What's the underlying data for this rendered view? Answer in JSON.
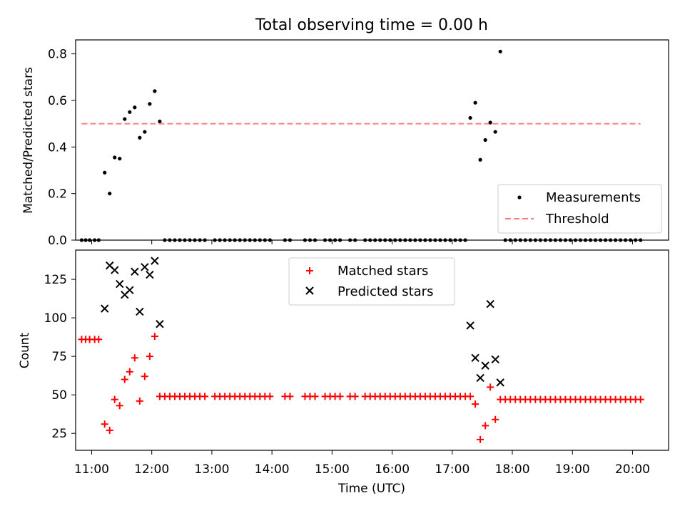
{
  "chart_data": [
    {
      "type": "scatter",
      "title": "Total observing time = 0.00 h",
      "xlabel": "",
      "ylabel": "Matched/Predicted stars",
      "xlim": [
        "10:44",
        "20:36"
      ],
      "ylim": [
        0,
        0.86
      ],
      "yticks": [
        "0.0",
        "0.2",
        "0.4",
        "0.6",
        "0.8"
      ],
      "grid": false,
      "legend_position": "lower-right",
      "series": [
        {
          "name": "Measurements",
          "marker": "dot",
          "color": "#000000",
          "points": [
            [
              "10:50",
              0
            ],
            [
              "10:54",
              0
            ],
            [
              "10:58",
              0
            ],
            [
              "11:03",
              0
            ],
            [
              "11:07",
              0
            ],
            [
              "11:13",
              0.29
            ],
            [
              "11:18",
              0.2
            ],
            [
              "11:23",
              0.355
            ],
            [
              "11:28",
              0.35
            ],
            [
              "11:33",
              0.52
            ],
            [
              "11:38",
              0.55
            ],
            [
              "11:43",
              0.57
            ],
            [
              "11:48",
              0.44
            ],
            [
              "11:53",
              0.465
            ],
            [
              "11:58",
              0.585
            ],
            [
              "12:03",
              0.64
            ],
            [
              "12:08",
              0.51
            ],
            [
              "12:13",
              0
            ],
            [
              "12:18",
              0
            ],
            [
              "12:23",
              0
            ],
            [
              "12:28",
              0
            ],
            [
              "12:33",
              0
            ],
            [
              "12:38",
              0
            ],
            [
              "12:43",
              0
            ],
            [
              "12:48",
              0
            ],
            [
              "12:53",
              0
            ],
            [
              "13:03",
              0
            ],
            [
              "13:08",
              0
            ],
            [
              "13:13",
              0
            ],
            [
              "13:18",
              0
            ],
            [
              "13:23",
              0
            ],
            [
              "13:28",
              0
            ],
            [
              "13:33",
              0
            ],
            [
              "13:38",
              0
            ],
            [
              "13:43",
              0
            ],
            [
              "13:48",
              0
            ],
            [
              "13:53",
              0
            ],
            [
              "13:58",
              0
            ],
            [
              "14:13",
              0
            ],
            [
              "14:18",
              0
            ],
            [
              "14:33",
              0
            ],
            [
              "14:38",
              0
            ],
            [
              "14:43",
              0
            ],
            [
              "14:53",
              0
            ],
            [
              "14:58",
              0
            ],
            [
              "15:03",
              0
            ],
            [
              "15:08",
              0
            ],
            [
              "15:18",
              0
            ],
            [
              "15:23",
              0
            ],
            [
              "15:33",
              0
            ],
            [
              "15:38",
              0
            ],
            [
              "15:43",
              0
            ],
            [
              "15:48",
              0
            ],
            [
              "15:53",
              0
            ],
            [
              "15:58",
              0
            ],
            [
              "16:03",
              0
            ],
            [
              "16:08",
              0
            ],
            [
              "16:13",
              0
            ],
            [
              "16:18",
              0
            ],
            [
              "16:23",
              0
            ],
            [
              "16:28",
              0
            ],
            [
              "16:33",
              0
            ],
            [
              "16:38",
              0
            ],
            [
              "16:43",
              0
            ],
            [
              "16:48",
              0
            ],
            [
              "16:53",
              0
            ],
            [
              "16:58",
              0
            ],
            [
              "17:03",
              0
            ],
            [
              "17:08",
              0
            ],
            [
              "17:13",
              0
            ],
            [
              "17:18",
              0.525
            ],
            [
              "17:23",
              0.59
            ],
            [
              "17:28",
              0.345
            ],
            [
              "17:33",
              0.43
            ],
            [
              "17:38",
              0.505
            ],
            [
              "17:43",
              0.465
            ],
            [
              "17:48",
              0.81
            ],
            [
              "17:53",
              0
            ],
            [
              "17:58",
              0
            ],
            [
              "18:03",
              0
            ],
            [
              "18:08",
              0
            ],
            [
              "18:13",
              0
            ],
            [
              "18:18",
              0
            ],
            [
              "18:23",
              0
            ],
            [
              "18:28",
              0
            ],
            [
              "18:33",
              0
            ],
            [
              "18:38",
              0
            ],
            [
              "18:43",
              0
            ],
            [
              "18:48",
              0
            ],
            [
              "18:53",
              0
            ],
            [
              "18:58",
              0
            ],
            [
              "19:03",
              0
            ],
            [
              "19:08",
              0
            ],
            [
              "19:13",
              0
            ],
            [
              "19:18",
              0
            ],
            [
              "19:23",
              0
            ],
            [
              "19:28",
              0
            ],
            [
              "19:33",
              0
            ],
            [
              "19:38",
              0
            ],
            [
              "19:43",
              0
            ],
            [
              "19:48",
              0
            ],
            [
              "19:53",
              0
            ],
            [
              "19:58",
              0
            ],
            [
              "20:03",
              0
            ],
            [
              "20:08",
              0
            ]
          ]
        },
        {
          "name": "Threshold",
          "style": "dashed-line",
          "color": "#ff7f7f",
          "points": [
            [
              "10:50",
              0.5
            ],
            [
              "20:08",
              0.5
            ]
          ]
        }
      ]
    },
    {
      "type": "scatter",
      "title": "",
      "xlabel": "Time (UTC)",
      "ylabel": "Count",
      "xlim": [
        "10:44",
        "20:36"
      ],
      "ylim": [
        14,
        144
      ],
      "yticks": [
        "25",
        "50",
        "75",
        "100",
        "125"
      ],
      "xticks": [
        "11:00",
        "12:00",
        "13:00",
        "14:00",
        "15:00",
        "16:00",
        "17:00",
        "18:00",
        "19:00",
        "20:00"
      ],
      "grid": false,
      "legend_position": "upper-center",
      "series": [
        {
          "name": "Matched stars",
          "marker": "plus",
          "color": "#ff0000",
          "points": [
            [
              "10:50",
              86
            ],
            [
              "10:54",
              86
            ],
            [
              "10:58",
              86
            ],
            [
              "11:03",
              86
            ],
            [
              "11:07",
              86
            ],
            [
              "11:13",
              31
            ],
            [
              "11:18",
              27
            ],
            [
              "11:23",
              47
            ],
            [
              "11:28",
              43
            ],
            [
              "11:33",
              60
            ],
            [
              "11:38",
              65
            ],
            [
              "11:43",
              74
            ],
            [
              "11:48",
              46
            ],
            [
              "11:53",
              62
            ],
            [
              "11:58",
              75
            ],
            [
              "12:03",
              88
            ],
            [
              "12:08",
              49
            ],
            [
              "12:13",
              49
            ],
            [
              "12:18",
              49
            ],
            [
              "12:23",
              49
            ],
            [
              "12:28",
              49
            ],
            [
              "12:33",
              49
            ],
            [
              "12:38",
              49
            ],
            [
              "12:43",
              49
            ],
            [
              "12:48",
              49
            ],
            [
              "12:53",
              49
            ],
            [
              "13:03",
              49
            ],
            [
              "13:08",
              49
            ],
            [
              "13:13",
              49
            ],
            [
              "13:18",
              49
            ],
            [
              "13:23",
              49
            ],
            [
              "13:28",
              49
            ],
            [
              "13:33",
              49
            ],
            [
              "13:38",
              49
            ],
            [
              "13:43",
              49
            ],
            [
              "13:48",
              49
            ],
            [
              "13:53",
              49
            ],
            [
              "13:58",
              49
            ],
            [
              "14:13",
              49
            ],
            [
              "14:18",
              49
            ],
            [
              "14:33",
              49
            ],
            [
              "14:38",
              49
            ],
            [
              "14:43",
              49
            ],
            [
              "14:53",
              49
            ],
            [
              "14:58",
              49
            ],
            [
              "15:03",
              49
            ],
            [
              "15:08",
              49
            ],
            [
              "15:18",
              49
            ],
            [
              "15:23",
              49
            ],
            [
              "15:33",
              49
            ],
            [
              "15:38",
              49
            ],
            [
              "15:43",
              49
            ],
            [
              "15:48",
              49
            ],
            [
              "15:53",
              49
            ],
            [
              "15:58",
              49
            ],
            [
              "16:03",
              49
            ],
            [
              "16:08",
              49
            ],
            [
              "16:13",
              49
            ],
            [
              "16:18",
              49
            ],
            [
              "16:23",
              49
            ],
            [
              "16:28",
              49
            ],
            [
              "16:33",
              49
            ],
            [
              "16:38",
              49
            ],
            [
              "16:43",
              49
            ],
            [
              "16:48",
              49
            ],
            [
              "16:53",
              49
            ],
            [
              "16:58",
              49
            ],
            [
              "17:03",
              49
            ],
            [
              "17:08",
              49
            ],
            [
              "17:13",
              49
            ],
            [
              "17:18",
              49
            ],
            [
              "17:23",
              44
            ],
            [
              "17:28",
              21
            ],
            [
              "17:33",
              30
            ],
            [
              "17:38",
              55
            ],
            [
              "17:43",
              34
            ],
            [
              "17:48",
              47
            ],
            [
              "17:53",
              47
            ],
            [
              "17:58",
              47
            ],
            [
              "18:03",
              47
            ],
            [
              "18:08",
              47
            ],
            [
              "18:13",
              47
            ],
            [
              "18:18",
              47
            ],
            [
              "18:23",
              47
            ],
            [
              "18:28",
              47
            ],
            [
              "18:33",
              47
            ],
            [
              "18:38",
              47
            ],
            [
              "18:43",
              47
            ],
            [
              "18:48",
              47
            ],
            [
              "18:53",
              47
            ],
            [
              "18:58",
              47
            ],
            [
              "19:03",
              47
            ],
            [
              "19:08",
              47
            ],
            [
              "19:13",
              47
            ],
            [
              "19:18",
              47
            ],
            [
              "19:23",
              47
            ],
            [
              "19:28",
              47
            ],
            [
              "19:33",
              47
            ],
            [
              "19:38",
              47
            ],
            [
              "19:43",
              47
            ],
            [
              "19:48",
              47
            ],
            [
              "19:53",
              47
            ],
            [
              "19:58",
              47
            ],
            [
              "20:03",
              47
            ],
            [
              "20:08",
              47
            ]
          ]
        },
        {
          "name": "Predicted stars",
          "marker": "x",
          "color": "#000000",
          "points": [
            [
              "11:13",
              106
            ],
            [
              "11:18",
              134
            ],
            [
              "11:23",
              131
            ],
            [
              "11:28",
              122
            ],
            [
              "11:33",
              115
            ],
            [
              "11:38",
              118
            ],
            [
              "11:43",
              130
            ],
            [
              "11:48",
              104
            ],
            [
              "11:53",
              133
            ],
            [
              "11:58",
              128
            ],
            [
              "12:03",
              137
            ],
            [
              "12:08",
              96
            ],
            [
              "17:18",
              95
            ],
            [
              "17:23",
              74
            ],
            [
              "17:28",
              61
            ],
            [
              "17:33",
              69
            ],
            [
              "17:38",
              109
            ],
            [
              "17:43",
              73
            ],
            [
              "17:48",
              58
            ]
          ]
        }
      ]
    }
  ]
}
